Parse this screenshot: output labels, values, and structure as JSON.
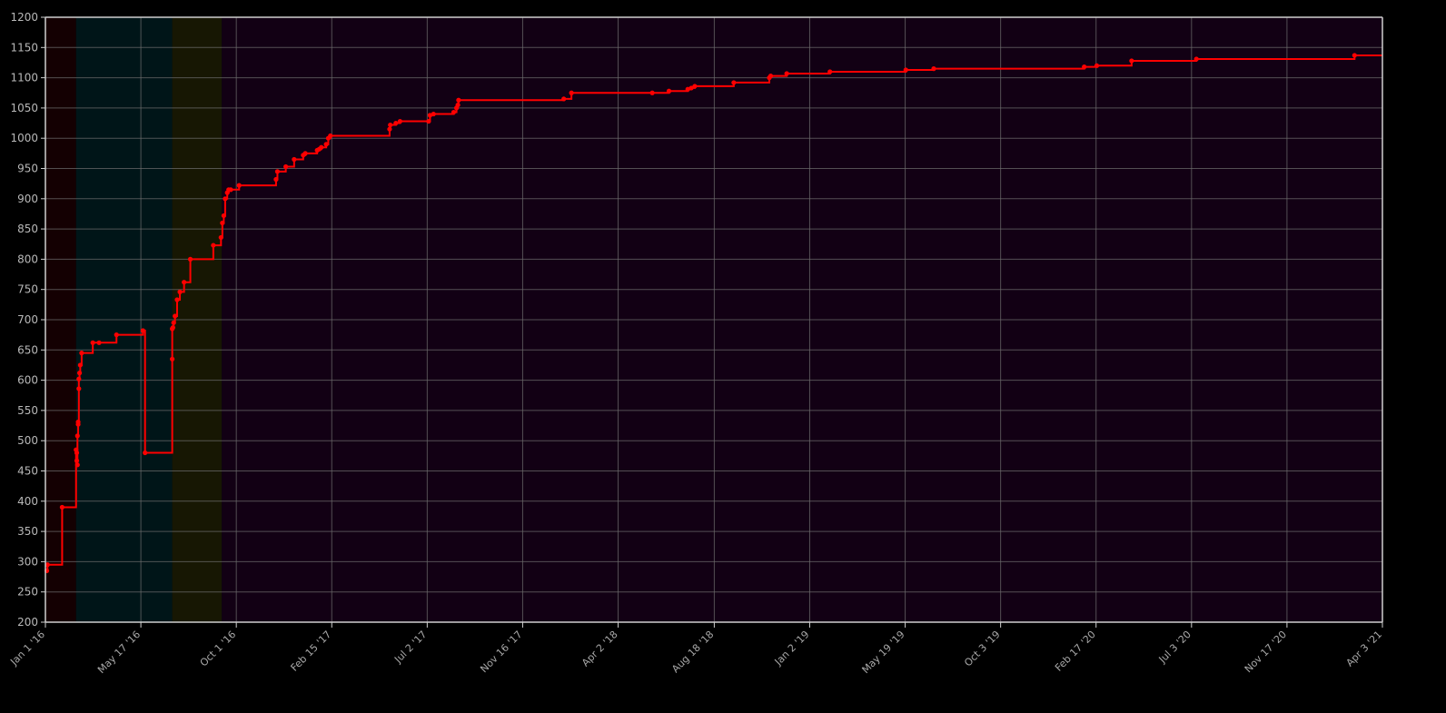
{
  "chart_data": {
    "type": "line",
    "step": true,
    "title": "",
    "xlabel": "",
    "ylabel": "",
    "ylim": [
      200,
      1200
    ],
    "xlim": [
      "2016-01-01",
      "2021-04-03"
    ],
    "y_ticks": [
      200,
      250,
      300,
      350,
      400,
      450,
      500,
      550,
      600,
      650,
      700,
      750,
      800,
      850,
      900,
      950,
      1000,
      1050,
      1100,
      1150,
      1200
    ],
    "x_ticks": [
      {
        "date": "2016-01-01",
        "label": "Jan 1 '16"
      },
      {
        "date": "2016-05-17",
        "label": "May 17 '16"
      },
      {
        "date": "2016-10-01",
        "label": "Oct 1 '16"
      },
      {
        "date": "2017-02-15",
        "label": "Feb 15 '17"
      },
      {
        "date": "2017-07-02",
        "label": "Jul 2 '17"
      },
      {
        "date": "2017-11-16",
        "label": "Nov 16 '17"
      },
      {
        "date": "2018-04-02",
        "label": "Apr 2 '18"
      },
      {
        "date": "2018-08-18",
        "label": "Aug 18 '18"
      },
      {
        "date": "2019-01-02",
        "label": "Jan 2 '19"
      },
      {
        "date": "2019-05-19",
        "label": "May 19 '19"
      },
      {
        "date": "2019-10-03",
        "label": "Oct 3 '19"
      },
      {
        "date": "2020-02-17",
        "label": "Feb 17 '20"
      },
      {
        "date": "2020-07-03",
        "label": "Jul 3 '20"
      },
      {
        "date": "2020-11-17",
        "label": "Nov 17 '20"
      },
      {
        "date": "2021-04-03",
        "label": "Apr 3 '21"
      }
    ],
    "grid": true,
    "bands": [
      {
        "start": "2016-01-01",
        "end": "2016-02-14",
        "color": "#140002"
      },
      {
        "start": "2016-02-14",
        "end": "2016-07-01",
        "color": "#001518"
      },
      {
        "start": "2016-07-01",
        "end": "2016-09-10",
        "color": "#171703"
      },
      {
        "start": "2016-09-10",
        "end": "2021-04-03",
        "color": "#120014"
      }
    ],
    "series": [
      {
        "color": "#ff0000",
        "x": [
          "2016-01-03",
          "2016-01-04",
          "2016-01-25",
          "2016-02-14",
          "2016-02-15",
          "2016-02-15",
          "2016-02-16",
          "2016-02-16",
          "2016-02-17",
          "2016-02-17",
          "2016-02-18",
          "2016-02-18",
          "2016-02-19",
          "2016-02-20",
          "2016-02-22",
          "2016-03-09",
          "2016-03-18",
          "2016-04-12",
          "2016-05-20",
          "2016-05-23",
          "2016-07-01",
          "2016-07-01",
          "2016-07-02",
          "2016-07-03",
          "2016-07-05",
          "2016-07-08",
          "2016-07-12",
          "2016-07-18",
          "2016-07-27",
          "2016-08-29",
          "2016-09-09",
          "2016-09-11",
          "2016-09-13",
          "2016-09-15",
          "2016-09-18",
          "2016-09-20",
          "2016-09-23",
          "2016-10-05",
          "2016-11-27",
          "2016-11-29",
          "2016-12-11",
          "2016-12-23",
          "2017-01-05",
          "2017-01-08",
          "2017-01-25",
          "2017-01-28",
          "2017-01-31",
          "2017-02-07",
          "2017-02-10",
          "2017-02-13",
          "2017-05-09",
          "2017-05-10",
          "2017-05-18",
          "2017-05-24",
          "2017-07-04",
          "2017-07-06",
          "2017-07-11",
          "2017-08-09",
          "2017-08-13",
          "2017-08-15",
          "2017-08-16",
          "2018-01-14",
          "2018-01-25",
          "2018-05-21",
          "2018-06-14",
          "2018-07-11",
          "2018-07-16",
          "2018-07-21",
          "2018-09-15",
          "2018-11-05",
          "2018-11-07",
          "2018-11-30",
          "2019-01-31",
          "2019-05-20",
          "2019-06-29",
          "2020-01-31",
          "2020-02-18",
          "2020-04-08",
          "2020-07-10",
          "2021-02-22",
          "2021-04-03"
        ],
        "y": [
          285,
          295,
          390,
          485,
          480,
          467,
          460,
          508,
          527,
          531,
          586,
          602,
          612,
          625,
          645,
          662,
          662,
          675,
          682,
          480,
          635,
          685,
          687,
          695,
          706,
          733,
          746,
          762,
          800,
          823,
          836,
          860,
          872,
          900,
          910,
          915,
          915,
          922,
          932,
          945,
          953,
          965,
          972,
          975,
          980,
          982,
          985,
          990,
          1000,
          1004,
          1015,
          1022,
          1025,
          1028,
          1028,
          1038,
          1040,
          1043,
          1050,
          1055,
          1063,
          1065,
          1075,
          1075,
          1078,
          1081,
          1083,
          1086,
          1092,
          1100,
          1103,
          1107,
          1110,
          1113,
          1115,
          1118,
          1120,
          1128,
          1131,
          1137,
          1137
        ]
      }
    ]
  }
}
